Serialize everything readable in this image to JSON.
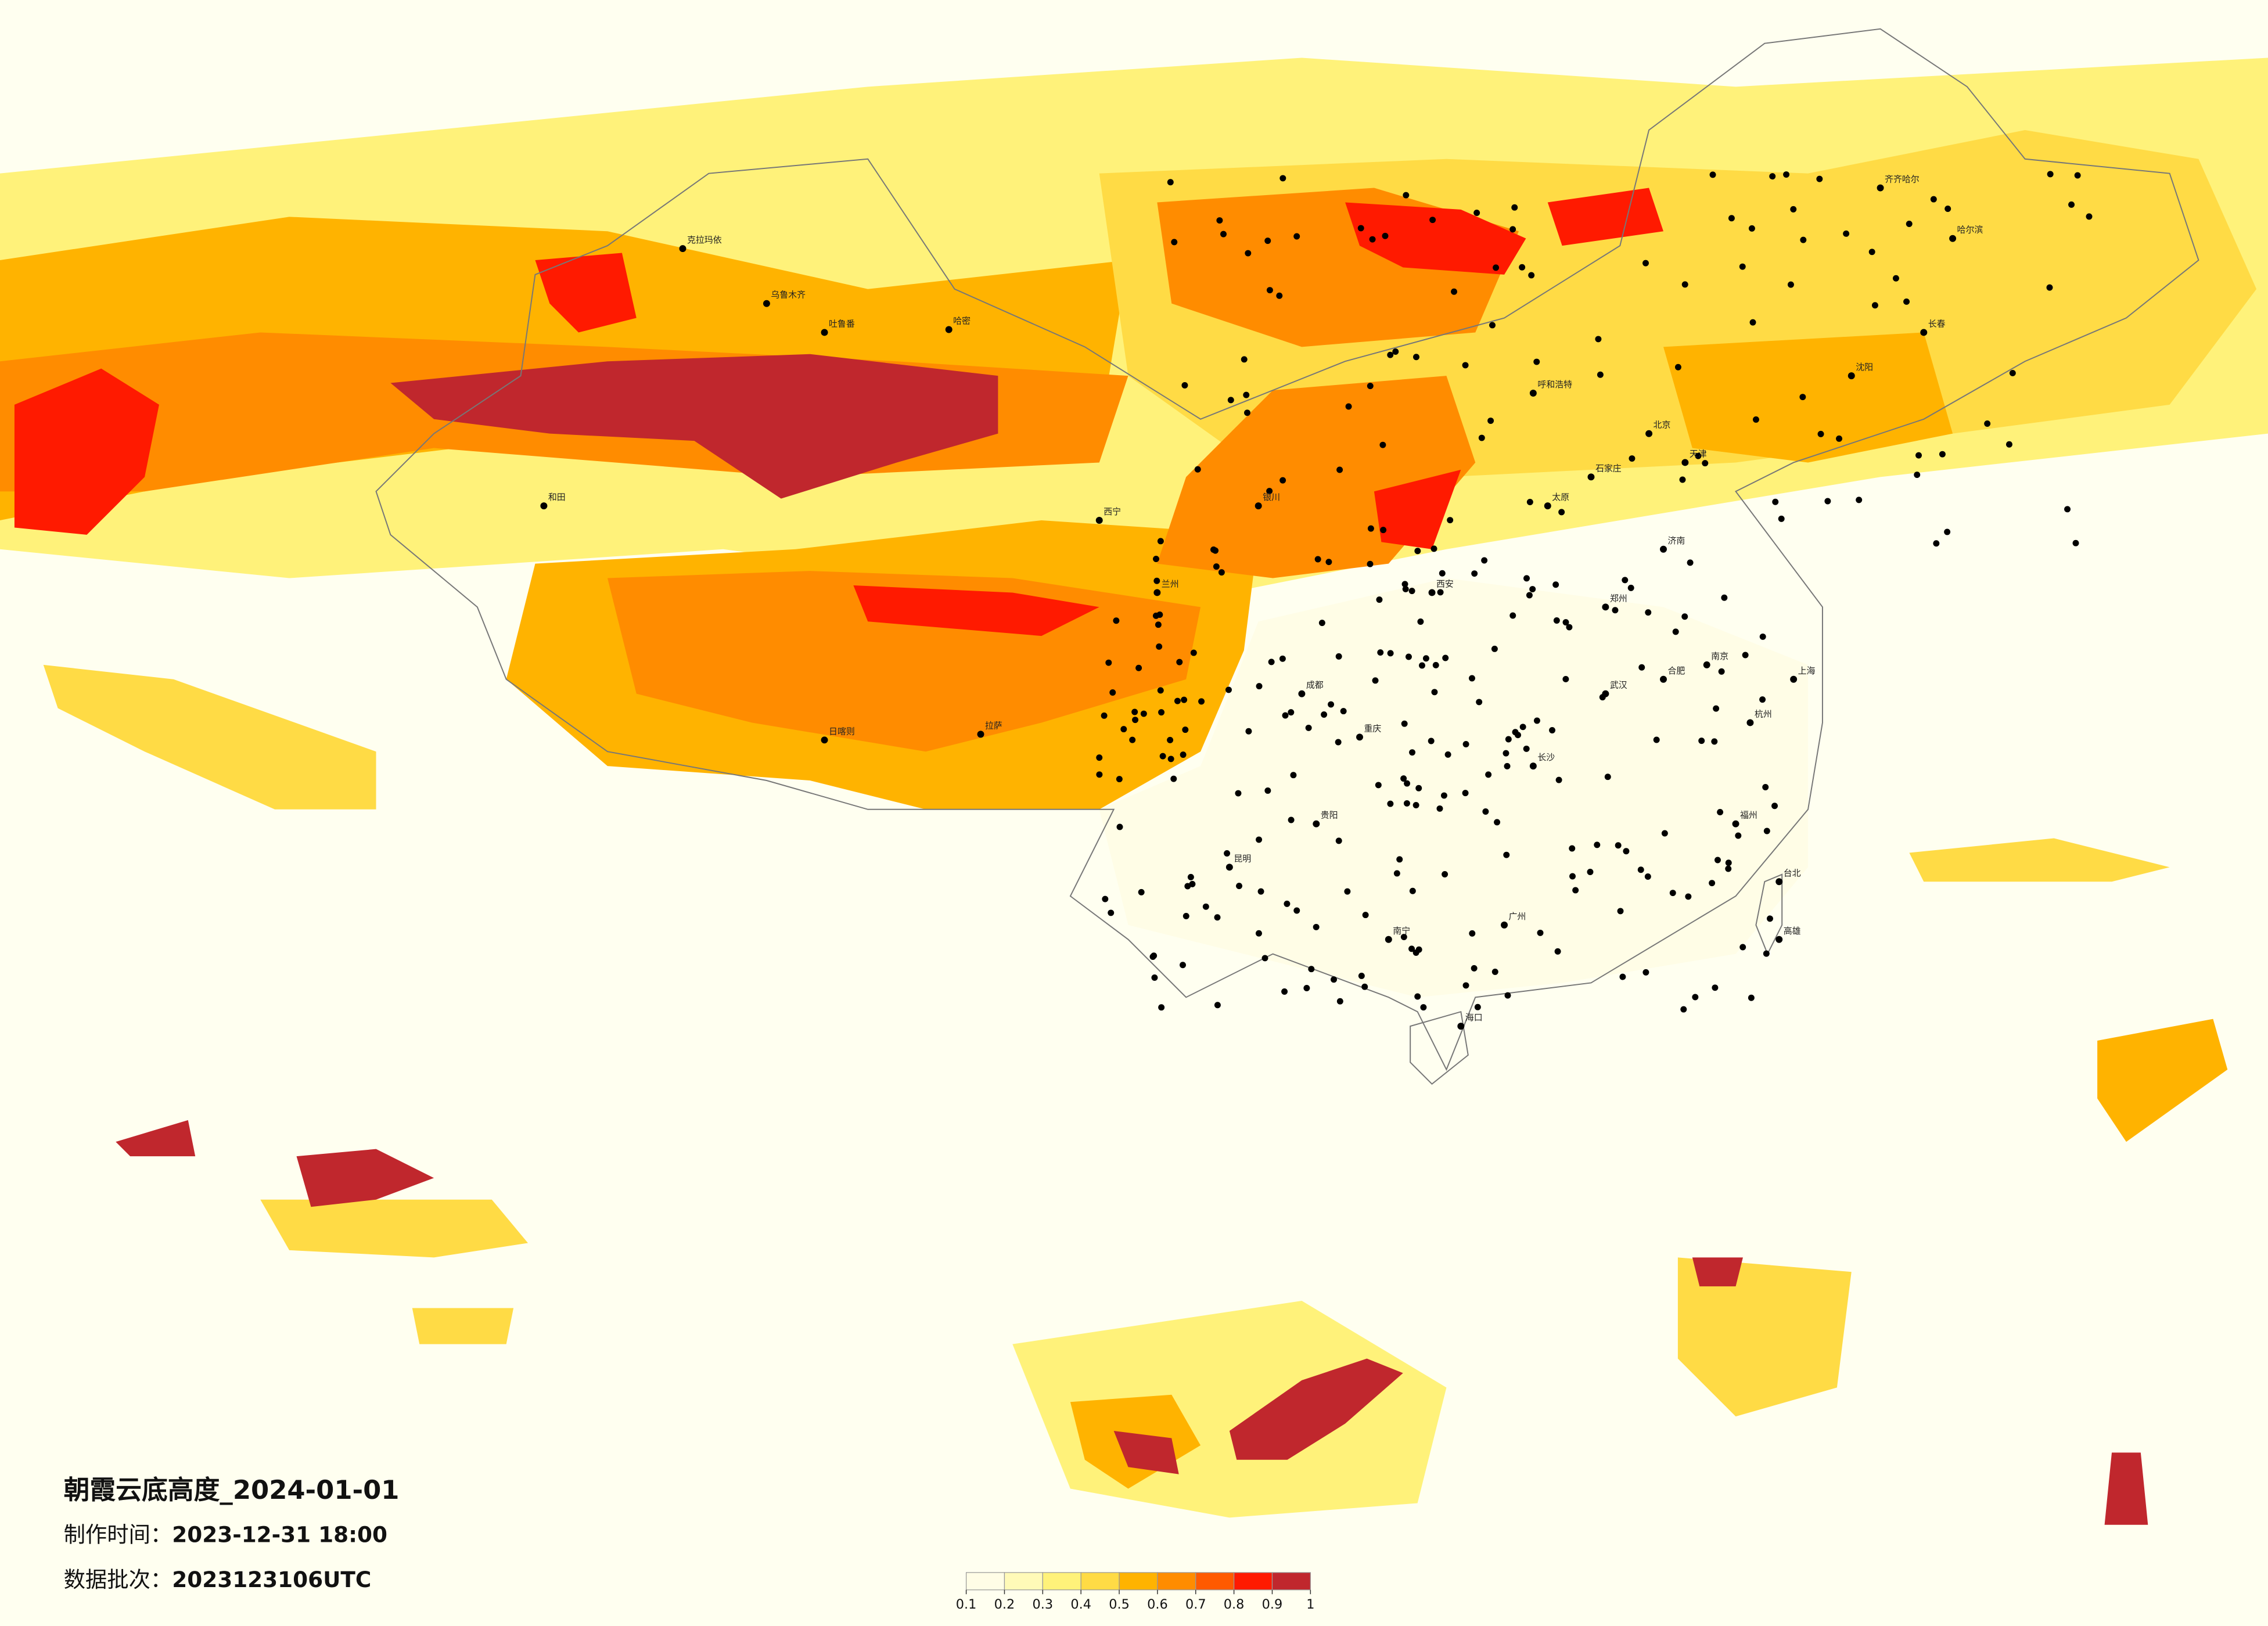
{
  "title": "朝霞云底高度_2024-01-01",
  "made_label": "制作时间：",
  "made_time": "2023-12-31 18:00",
  "batch_label": "数据批次：",
  "batch": "2023123106UTC",
  "legend": {
    "colors": [
      "#fffde6",
      "#fffab8",
      "#fff27a",
      "#ffdb45",
      "#ffb300",
      "#ff8c00",
      "#ff5a00",
      "#ff1a00",
      "#c0272d"
    ],
    "ticks": [
      0.1,
      0.2,
      0.3,
      0.4,
      0.5,
      0.6,
      0.7,
      0.8,
      0.9,
      1
    ]
  },
  "cities": [
    "克拉玛依",
    "乌鲁木齐",
    "吐鲁番",
    "和田",
    "哈密",
    "拉萨",
    "日喀则",
    "西宁",
    "兰州",
    "银川",
    "呼和浩特",
    "北京",
    "天津",
    "石家庄",
    "太原",
    "郑州",
    "西安",
    "成都",
    "重庆",
    "昆明",
    "贵阳",
    "南宁",
    "广州",
    "海口",
    "长沙",
    "武汉",
    "南京",
    "上海",
    "杭州",
    "福州",
    "合肥",
    "济南",
    "沈阳",
    "长春",
    "哈尔滨",
    "齐齐哈尔",
    "台北",
    "高雄"
  ]
}
